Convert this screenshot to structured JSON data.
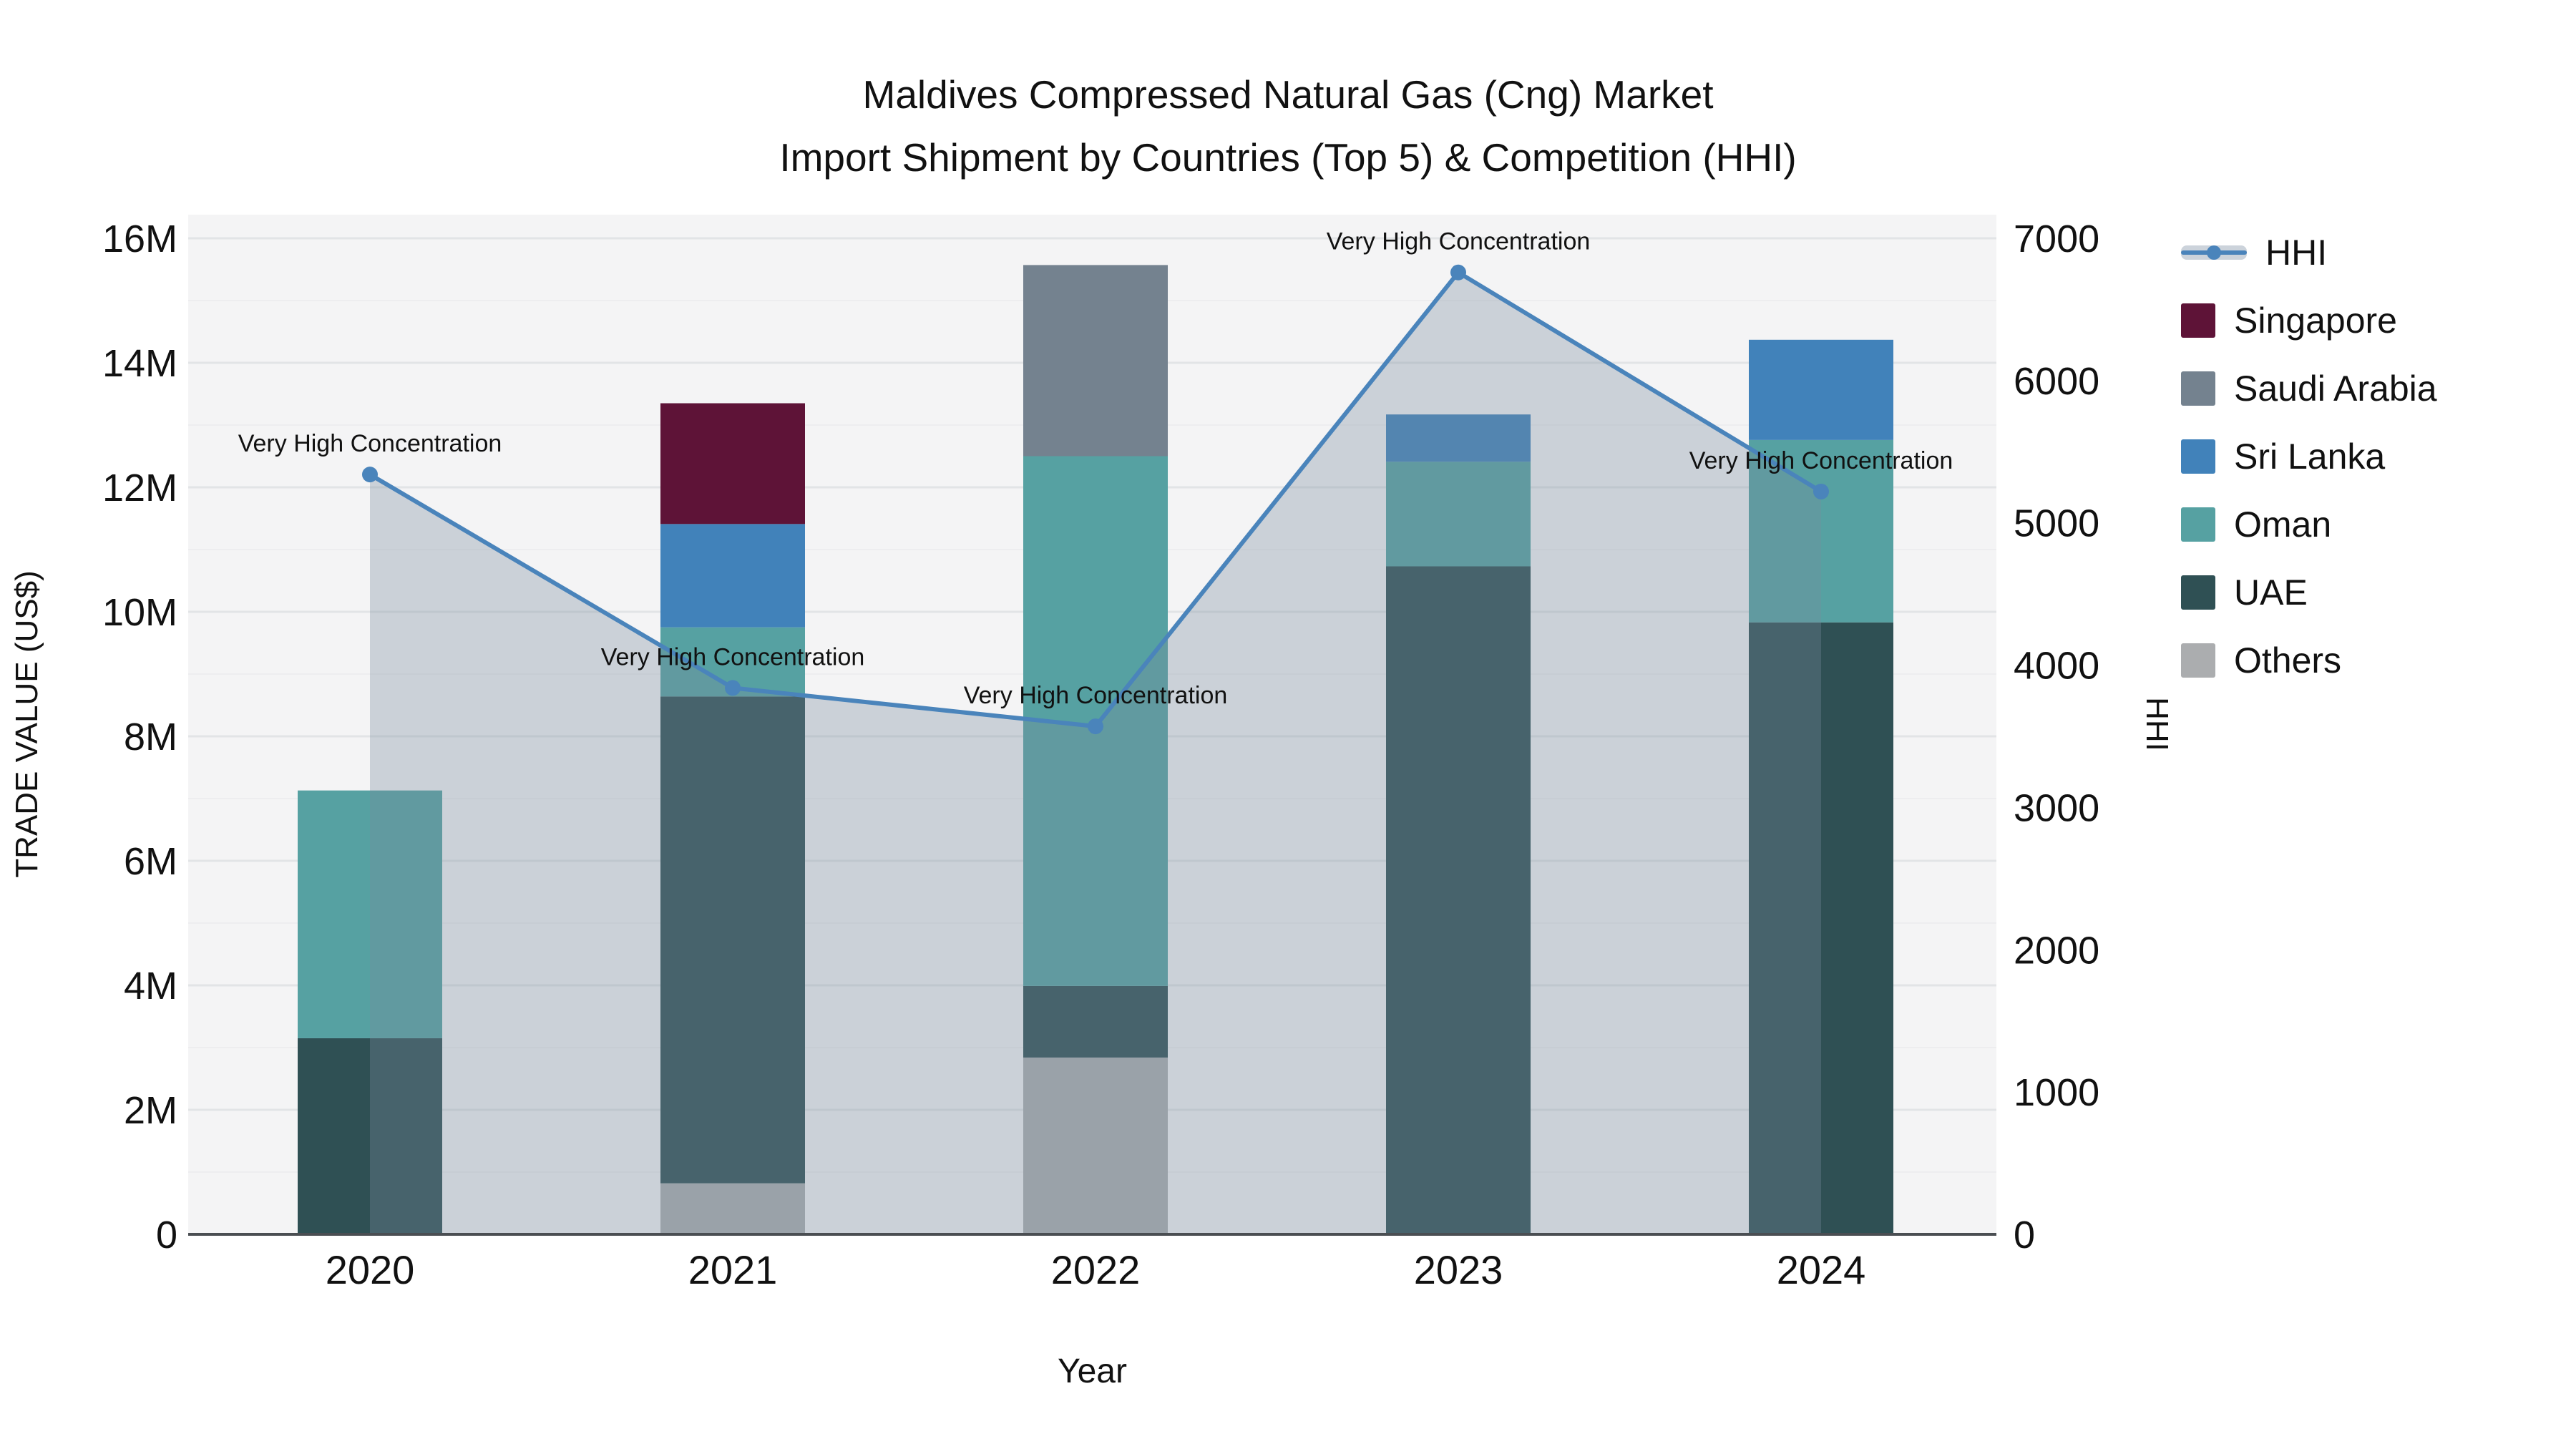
{
  "title": {
    "line1": "Maldives Compressed Natural Gas (Cng) Market",
    "line2": "Import Shipment by Countries (Top 5) & Competition (HHI)"
  },
  "legend": {
    "items": [
      {
        "key": "hhi",
        "label": "HHI",
        "type": "line"
      },
      {
        "key": "singapore",
        "label": "Singapore",
        "type": "box",
        "color": "#5e1337"
      },
      {
        "key": "saudi-arabia",
        "label": "Saudi Arabia",
        "type": "box",
        "color": "#74828f"
      },
      {
        "key": "sri-lanka",
        "label": "Sri Lanka",
        "type": "box",
        "color": "#4182ba"
      },
      {
        "key": "oman",
        "label": "Oman",
        "type": "box",
        "color": "#56a1a2"
      },
      {
        "key": "uae",
        "label": "UAE",
        "type": "box",
        "color": "#2f5054"
      },
      {
        "key": "others",
        "label": "Others",
        "type": "box",
        "color": "#abadaf"
      }
    ]
  },
  "chart_data": {
    "type": "combo-stacked-bar-line",
    "categories": [
      "2020",
      "2021",
      "2022",
      "2023",
      "2024"
    ],
    "x_label": "Year",
    "y_left": {
      "label": "TRADE VALUE (US$)",
      "min": 0,
      "max_millions": 16,
      "tick_labels": [
        "0",
        "2M",
        "4M",
        "6M",
        "8M",
        "10M",
        "12M",
        "14M",
        "16M"
      ]
    },
    "y_right": {
      "label": "HHI",
      "min": 0,
      "max": 7000,
      "tick_labels": [
        "0",
        "1000",
        "2000",
        "3000",
        "4000",
        "5000",
        "6000",
        "7000"
      ]
    },
    "stacks": [
      {
        "year": "2020",
        "segments": [
          {
            "country": "UAE",
            "value_millions": 3.15
          },
          {
            "country": "Oman",
            "value_millions": 3.98
          }
        ]
      },
      {
        "year": "2021",
        "segments": [
          {
            "country": "Others",
            "value_millions": 0.82
          },
          {
            "country": "UAE",
            "value_millions": 7.82
          },
          {
            "country": "Oman",
            "value_millions": 1.11
          },
          {
            "country": "Sri Lanka",
            "value_millions": 1.66
          },
          {
            "country": "Singapore",
            "value_millions": 1.94
          }
        ]
      },
      {
        "year": "2022",
        "segments": [
          {
            "country": "Others",
            "value_millions": 2.84
          },
          {
            "country": "UAE",
            "value_millions": 1.15
          },
          {
            "country": "Oman",
            "value_millions": 8.51
          },
          {
            "country": "Saudi Arabia",
            "value_millions": 3.07
          }
        ]
      },
      {
        "year": "2023",
        "segments": [
          {
            "country": "UAE",
            "value_millions": 10.73
          },
          {
            "country": "Oman",
            "value_millions": 1.68
          },
          {
            "country": "Sri Lanka",
            "value_millions": 0.76
          }
        ]
      },
      {
        "year": "2024",
        "segments": [
          {
            "country": "UAE",
            "value_millions": 9.83
          },
          {
            "country": "Oman",
            "value_millions": 2.93
          },
          {
            "country": "Sri Lanka",
            "value_millions": 1.61
          }
        ]
      }
    ],
    "hhi_series": {
      "name": "HHI",
      "values": [
        5340,
        3840,
        3570,
        6760,
        5220
      ],
      "point_annotation": "Very High Concentration"
    },
    "colors": {
      "UAE": "#2f5054",
      "Oman": "#56a1a2",
      "Sri Lanka": "#4182ba",
      "Saudi Arabia": "#74828f",
      "Singapore": "#5e1337",
      "Others": "#abadaf",
      "hhi_line": "#4a84bb",
      "hhi_area": "rgba(121,139,158,0.33)",
      "panel": "#f4f4f5",
      "grid_major": "#e2e4e6",
      "grid_minor": "#ededef",
      "baseline": "#4a4e52",
      "text": "#111111"
    },
    "layout": {
      "grid": true,
      "legend_position": "right",
      "area_under_line": true
    }
  }
}
